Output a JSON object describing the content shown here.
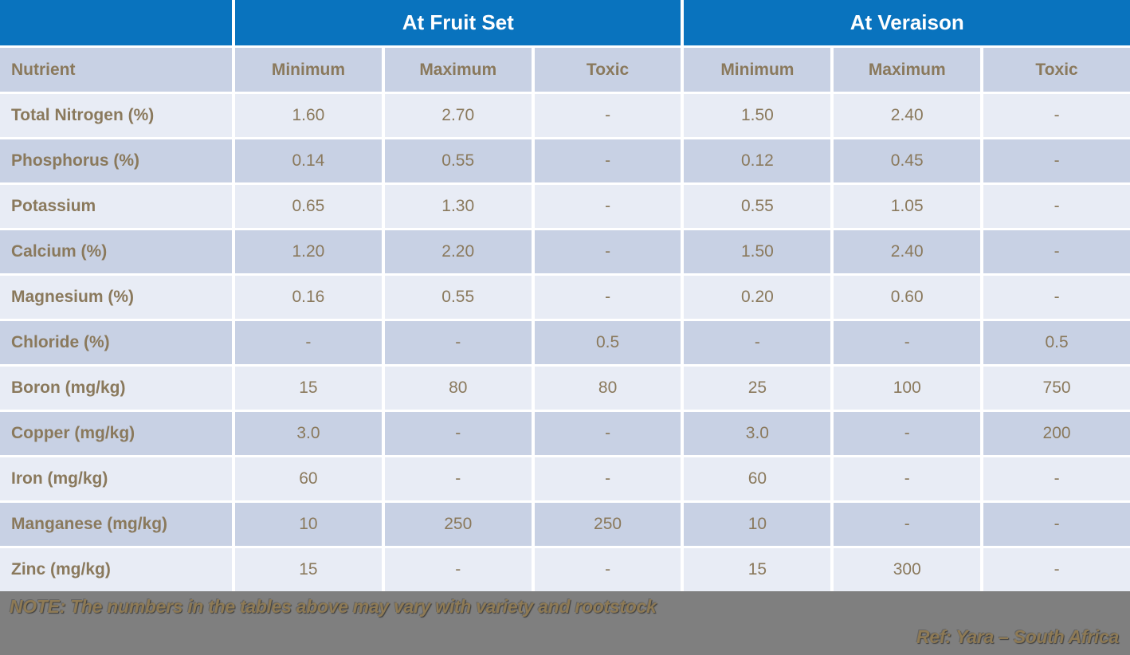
{
  "chart_data": {
    "type": "table",
    "group_headers": [
      "At Fruit Set",
      "At Veraison"
    ],
    "columns": [
      "Nutrient",
      "Minimum",
      "Maximum",
      "Toxic",
      "Minimum",
      "Maximum",
      "Toxic"
    ],
    "rows": [
      {
        "nutrient": "Total Nitrogen (%)",
        "values": [
          "1.60",
          "2.70",
          "-",
          "1.50",
          "2.40",
          "-"
        ]
      },
      {
        "nutrient": "Phosphorus (%)",
        "values": [
          "0.14",
          "0.55",
          "-",
          "0.12",
          "0.45",
          "-"
        ]
      },
      {
        "nutrient": "Potassium",
        "values": [
          "0.65",
          "1.30",
          "-",
          "0.55",
          "1.05",
          "-"
        ]
      },
      {
        "nutrient": "Calcium (%)",
        "values": [
          "1.20",
          "2.20",
          "-",
          "1.50",
          "2.40",
          "-"
        ]
      },
      {
        "nutrient": "Magnesium (%)",
        "values": [
          "0.16",
          "0.55",
          "-",
          "0.20",
          "0.60",
          "-"
        ]
      },
      {
        "nutrient": "Chloride (%)",
        "values": [
          "-",
          "-",
          "0.5",
          "-",
          "-",
          "0.5"
        ]
      },
      {
        "nutrient": "Boron (mg/kg)",
        "values": [
          "15",
          "80",
          "80",
          "25",
          "100",
          "750"
        ]
      },
      {
        "nutrient": "Copper (mg/kg)",
        "values": [
          "3.0",
          "-",
          "-",
          "3.0",
          "-",
          "200"
        ]
      },
      {
        "nutrient": "Iron (mg/kg)",
        "values": [
          "60",
          "-",
          "-",
          "60",
          "-",
          "-"
        ]
      },
      {
        "nutrient": "Manganese (mg/kg)",
        "values": [
          "10",
          "250",
          "250",
          "10",
          "-",
          "-"
        ]
      },
      {
        "nutrient": "Zinc (mg/kg)",
        "values": [
          "15",
          "-",
          "-",
          "15",
          "300",
          "-"
        ]
      }
    ]
  },
  "footer": {
    "note": "NOTE: The numbers in the tables above may vary with variety and rootstock",
    "ref": "Ref: Yara – South Africa"
  },
  "colors": {
    "banner_blue": "#0973be",
    "row_light": "#e8ecf5",
    "row_dark": "#c8d1e4",
    "text_brown": "#8a795c",
    "footer_gray": "#7f7f7f",
    "footer_text_brown": "#8e7a55"
  }
}
